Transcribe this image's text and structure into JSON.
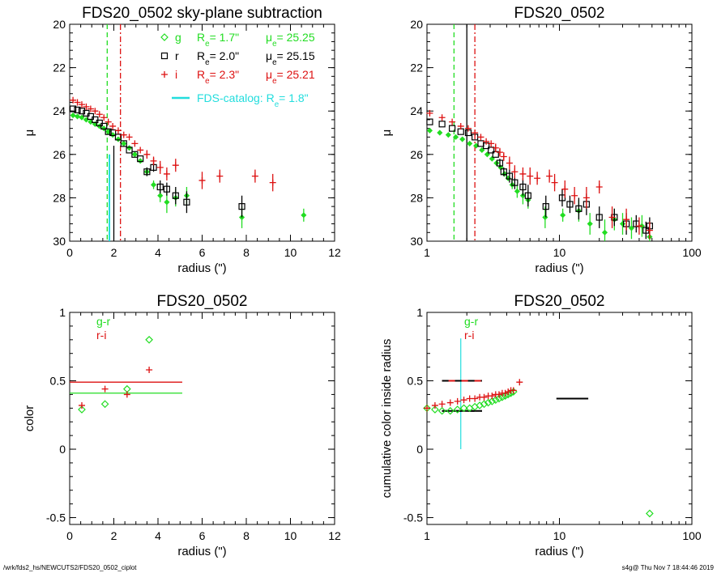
{
  "colors": {
    "g": "#22dd22",
    "r": "#000000",
    "i": "#dd1111",
    "cyan": "#22dddd"
  },
  "footer": {
    "left": "/wrk/fds2_hs/NEWCUTS2/FDS20_0502_ciplot",
    "right": "s4g@  Thu Nov  7 18:44:46 2019"
  },
  "chart_data": [
    {
      "id": "p1",
      "type": "scatter",
      "title": "FDS20_0502 sky-plane subtraction",
      "xlabel": "radius (\")",
      "ylabel": "μ",
      "xlim": [
        0,
        12
      ],
      "ylim": [
        30,
        20
      ],
      "xticks": [
        0,
        2,
        4,
        6,
        8,
        10,
        12
      ],
      "yticks": [
        20,
        22,
        24,
        26,
        28,
        30
      ],
      "legend": [
        {
          "band": "g",
          "symbol": "diamond",
          "re_label": "R",
          "re_sub": "e",
          "re_value": "=  1.7\"",
          "mu_label": "μ",
          "mu_sub": "e",
          "mu_value": "= 25.25"
        },
        {
          "band": "r",
          "symbol": "square",
          "re_label": "R",
          "re_sub": "e",
          "re_value": "=  2.0\"",
          "mu_label": "μ",
          "mu_sub": "e",
          "mu_value": "= 25.15"
        },
        {
          "band": "i",
          "symbol": "plus",
          "re_label": "R",
          "re_sub": "e",
          "re_value": "=  2.3\"",
          "mu_label": "μ",
          "mu_sub": "e",
          "mu_value": "= 25.21"
        }
      ],
      "catalog_label": "FDS-catalog: R",
      "catalog_sub": "e",
      "catalog_value": "=  1.8\"",
      "vlines": [
        {
          "x": 1.7,
          "band": "g",
          "style": "dashed",
          "ymax": 30,
          "ymin": 20
        },
        {
          "x": 2.0,
          "band": "r",
          "style": "solid",
          "ymax": 30,
          "ymin": 25.6
        },
        {
          "x": 2.3,
          "band": "i",
          "style": "dashdot",
          "ymax": 30,
          "ymin": 20
        },
        {
          "x": 1.8,
          "band": "cyan",
          "style": "solid",
          "ymax": 30,
          "ymin": 26.0
        }
      ],
      "series": [
        {
          "band": "g",
          "x": [
            0.15,
            0.35,
            0.55,
            0.75,
            0.95,
            1.15,
            1.35,
            1.55,
            1.75,
            1.95,
            2.2,
            2.45,
            2.7,
            2.95,
            3.2,
            3.5,
            3.8,
            4.1,
            4.4,
            4.8,
            5.3,
            7.8,
            10.6
          ],
          "y": [
            24.2,
            24.25,
            24.3,
            24.4,
            24.5,
            24.6,
            24.7,
            24.8,
            24.95,
            25.1,
            25.3,
            25.5,
            25.7,
            26.0,
            26.3,
            26.8,
            27.4,
            27.9,
            28.2,
            28.0,
            27.9,
            28.9,
            28.8
          ],
          "err": [
            0,
            0,
            0,
            0,
            0,
            0,
            0,
            0,
            0,
            0,
            0,
            0,
            0,
            0,
            0,
            0.2,
            0.2,
            0.3,
            0.5,
            0.4,
            0.4,
            0.5,
            0.3
          ]
        },
        {
          "band": "r",
          "x": [
            0.15,
            0.35,
            0.55,
            0.75,
            0.95,
            1.15,
            1.35,
            1.55,
            1.75,
            1.95,
            2.2,
            2.45,
            2.7,
            2.95,
            3.2,
            3.5,
            3.8,
            4.1,
            4.4,
            4.8,
            5.3,
            7.8
          ],
          "y": [
            23.9,
            23.95,
            24.0,
            24.1,
            24.25,
            24.4,
            24.55,
            24.7,
            24.95,
            25.0,
            25.2,
            25.5,
            25.8,
            26.0,
            26.2,
            26.8,
            26.6,
            27.5,
            27.6,
            27.9,
            28.2,
            28.4
          ],
          "err": [
            0,
            0,
            0,
            0,
            0,
            0,
            0,
            0,
            0,
            0,
            0,
            0,
            0,
            0,
            0,
            0.2,
            0.2,
            0.3,
            0.3,
            0.4,
            0.5,
            0.5
          ]
        },
        {
          "band": "i",
          "x": [
            0.15,
            0.35,
            0.55,
            0.75,
            0.95,
            1.15,
            1.35,
            1.55,
            1.75,
            1.95,
            2.2,
            2.45,
            2.7,
            2.95,
            3.2,
            3.5,
            3.8,
            4.1,
            4.4,
            4.8,
            6.0,
            6.8,
            8.4,
            9.2
          ],
          "y": [
            23.5,
            23.6,
            23.7,
            23.8,
            23.9,
            24.0,
            24.15,
            24.3,
            24.5,
            24.7,
            24.9,
            25.1,
            25.2,
            25.5,
            25.8,
            26.0,
            26.3,
            26.6,
            26.9,
            26.5,
            27.2,
            27.0,
            27.0,
            27.3
          ],
          "err": [
            0,
            0,
            0,
            0,
            0,
            0,
            0,
            0,
            0,
            0,
            0,
            0,
            0,
            0,
            0,
            0.2,
            0.2,
            0.3,
            0.3,
            0.3,
            0.4,
            0.3,
            0.3,
            0.4
          ]
        }
      ]
    },
    {
      "id": "p2",
      "type": "scatter",
      "xscale": "log",
      "title": "FDS20_0502",
      "xlabel": "radius (\")",
      "ylabel": "μ",
      "xlim": [
        1,
        100
      ],
      "ylim": [
        30,
        20
      ],
      "xticks": [
        1,
        10,
        100
      ],
      "yticks": [
        20,
        22,
        24,
        26,
        28,
        30
      ],
      "vlines": [
        {
          "x": 1.6,
          "band": "g",
          "style": "dashed",
          "ymax": 30,
          "ymin": 20
        },
        {
          "x": 2.0,
          "band": "r",
          "style": "solid",
          "ymax": 30,
          "ymin": 20
        },
        {
          "x": 2.3,
          "band": "i",
          "style": "dashdot",
          "ymax": 30,
          "ymin": 20
        }
      ],
      "series": [
        {
          "band": "g",
          "x": [
            1.05,
            1.25,
            1.45,
            1.65,
            1.85,
            2.1,
            2.35,
            2.6,
            2.85,
            3.1,
            3.35,
            3.6,
            3.85,
            4.1,
            4.4,
            4.8,
            5.3,
            5.8,
            7.8,
            10.6,
            14,
            17,
            22,
            26,
            30,
            35,
            42,
            48
          ],
          "y": [
            24.9,
            25.0,
            25.1,
            25.2,
            25.3,
            25.5,
            25.6,
            25.8,
            26.0,
            26.2,
            26.4,
            26.6,
            26.9,
            27.1,
            27.4,
            27.7,
            27.9,
            28.1,
            28.9,
            28.8,
            28.6,
            29.2,
            29.6,
            29.0,
            29.2,
            29.4,
            29.3,
            29.8
          ],
          "err": [
            0,
            0,
            0,
            0,
            0,
            0,
            0,
            0,
            0,
            0,
            0,
            0,
            0,
            0,
            0.2,
            0.3,
            0.4,
            0.4,
            0.5,
            0.3,
            0.5,
            0.5,
            0.6,
            0.5,
            0.5,
            0.5,
            0.5,
            0.4
          ]
        },
        {
          "band": "r",
          "x": [
            1.05,
            1.3,
            1.55,
            1.8,
            2.05,
            2.3,
            2.55,
            2.8,
            3.05,
            3.3,
            3.55,
            3.8,
            4.2,
            4.6,
            5.3,
            5.8,
            7.9,
            10.5,
            12,
            14,
            16,
            20,
            26,
            32,
            38,
            45,
            48
          ],
          "y": [
            24.5,
            24.6,
            24.8,
            24.95,
            25.0,
            25.2,
            25.5,
            25.6,
            25.8,
            26.0,
            26.4,
            26.8,
            27.0,
            27.3,
            27.5,
            27.9,
            28.4,
            28.0,
            28.3,
            28.5,
            28.3,
            28.9,
            28.9,
            29.2,
            29.2,
            29.5,
            29.3
          ],
          "err": [
            0,
            0,
            0,
            0,
            0,
            0,
            0,
            0,
            0,
            0,
            0.2,
            0.2,
            0.3,
            0.3,
            0.4,
            0.5,
            0.5,
            0.4,
            0.4,
            0.5,
            0.5,
            0.5,
            0.4,
            0.5,
            0.4,
            0.4,
            0.4
          ]
        },
        {
          "band": "i",
          "x": [
            1.05,
            1.3,
            1.55,
            1.8,
            2.05,
            2.3,
            2.55,
            2.8,
            3.05,
            3.3,
            3.55,
            3.8,
            4.2,
            4.6,
            5.3,
            6.0,
            6.8,
            8.4,
            9.2,
            11,
            13,
            16,
            20,
            25,
            32,
            40,
            48
          ],
          "y": [
            24.1,
            24.3,
            24.5,
            24.7,
            24.8,
            25.0,
            25.2,
            25.4,
            25.5,
            25.7,
            25.9,
            26.1,
            26.4,
            26.8,
            26.9,
            27.0,
            27.1,
            27.0,
            27.3,
            27.6,
            27.9,
            28.0,
            27.5,
            28.9,
            29.0,
            29.3,
            29.5
          ],
          "err": [
            0,
            0,
            0,
            0,
            0,
            0,
            0,
            0,
            0,
            0.2,
            0.2,
            0.2,
            0.3,
            0.3,
            0.3,
            0.4,
            0.3,
            0.3,
            0.4,
            0.4,
            0.4,
            0.5,
            0.3,
            0.5,
            0.5,
            0.4,
            0.4
          ]
        }
      ]
    },
    {
      "id": "p3",
      "type": "scatter",
      "title": "FDS20_0502",
      "xlabel": "radius (\")",
      "ylabel": "color",
      "xlim": [
        0,
        12
      ],
      "ylim": [
        -0.55,
        1.0
      ],
      "xticks": [
        0,
        2,
        4,
        6,
        8,
        10,
        12
      ],
      "yticks": [
        -0.5,
        0.0,
        0.5,
        1.0
      ],
      "legend": [
        {
          "label": "g-r",
          "band": "g"
        },
        {
          "label": "r-i",
          "band": "i"
        }
      ],
      "hlines": [
        {
          "y": 0.49,
          "x0": 0.0,
          "x1": 5.1,
          "band": "i"
        },
        {
          "y": 0.41,
          "x0": 0.0,
          "x1": 5.1,
          "band": "g"
        }
      ],
      "series": [
        {
          "name": "g-r",
          "band": "g",
          "symbol": "diamond",
          "x": [
            0.55,
            1.6,
            2.6,
            3.6
          ],
          "y": [
            0.29,
            0.33,
            0.44,
            0.8
          ]
        },
        {
          "name": "r-i",
          "band": "i",
          "symbol": "plus",
          "x": [
            0.55,
            1.6,
            2.6,
            3.6
          ],
          "y": [
            0.32,
            0.44,
            0.4,
            0.58
          ]
        }
      ]
    },
    {
      "id": "p4",
      "type": "scatter",
      "xscale": "log",
      "title": "FDS20_0502",
      "xlabel": "radius (\")",
      "ylabel": "cumulative color inside radius",
      "xlim": [
        1,
        100
      ],
      "ylim": [
        -0.55,
        1.0
      ],
      "xticks": [
        1,
        10,
        100
      ],
      "yticks": [
        -0.5,
        0.0,
        0.5,
        1.0
      ],
      "legend": [
        {
          "label": "g-r",
          "band": "g"
        },
        {
          "label": "r-i",
          "band": "i"
        }
      ],
      "cross": {
        "x": 1.8,
        "y0": 0.0,
        "y1": 0.81,
        "band": "cyan"
      },
      "segments": [
        {
          "x0": 1.3,
          "x1": 2.6,
          "y": 0.5,
          "band": "i"
        },
        {
          "x0": 1.3,
          "x1": 2.6,
          "y": 0.28,
          "band": "r"
        },
        {
          "x0": 9.5,
          "x1": 16.5,
          "y": 0.37,
          "band": "r"
        }
      ],
      "series": [
        {
          "name": "g-r",
          "band": "g",
          "symbol": "diamond",
          "x": [
            1.0,
            1.15,
            1.3,
            1.5,
            1.7,
            1.9,
            2.1,
            2.3,
            2.5,
            2.7,
            2.9,
            3.1,
            3.3,
            3.5,
            3.7,
            3.9,
            4.1,
            4.3,
            4.5,
            48
          ],
          "y": [
            0.3,
            0.29,
            0.28,
            0.28,
            0.29,
            0.3,
            0.3,
            0.31,
            0.32,
            0.33,
            0.34,
            0.35,
            0.36,
            0.37,
            0.38,
            0.39,
            0.4,
            0.41,
            0.42,
            -0.47
          ]
        },
        {
          "name": "r-i",
          "band": "i",
          "symbol": "plus",
          "x": [
            1.0,
            1.15,
            1.3,
            1.5,
            1.7,
            1.9,
            2.1,
            2.3,
            2.5,
            2.7,
            2.9,
            3.1,
            3.3,
            3.5,
            3.7,
            3.9,
            4.1,
            4.3,
            4.5,
            5.0
          ],
          "y": [
            0.3,
            0.32,
            0.33,
            0.34,
            0.35,
            0.36,
            0.37,
            0.37,
            0.38,
            0.38,
            0.39,
            0.39,
            0.4,
            0.4,
            0.41,
            0.41,
            0.42,
            0.43,
            0.43,
            0.49
          ]
        }
      ]
    }
  ]
}
